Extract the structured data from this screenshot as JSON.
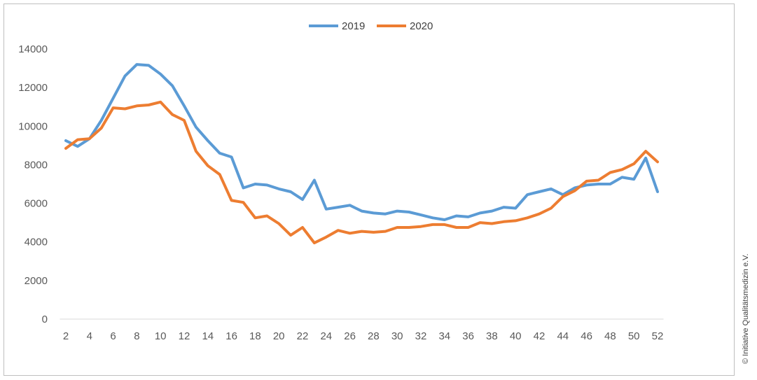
{
  "copyright": "© Initiative Qualitätsmedizin e.V.",
  "chart_data": {
    "type": "line",
    "title": "",
    "xlabel": "",
    "ylabel": "",
    "ylim": [
      0,
      14000
    ],
    "y_ticks": [
      0,
      2000,
      4000,
      6000,
      8000,
      10000,
      12000,
      14000
    ],
    "x_range": [
      2,
      52
    ],
    "x_ticks": [
      2,
      4,
      6,
      8,
      10,
      12,
      14,
      16,
      18,
      20,
      22,
      24,
      26,
      28,
      30,
      32,
      34,
      36,
      38,
      40,
      42,
      44,
      46,
      48,
      50,
      52
    ],
    "grid": false,
    "legend": "top-center",
    "x": [
      2,
      3,
      4,
      5,
      6,
      7,
      8,
      9,
      10,
      11,
      12,
      13,
      14,
      15,
      16,
      17,
      18,
      19,
      20,
      21,
      22,
      23,
      24,
      25,
      26,
      27,
      28,
      29,
      30,
      31,
      32,
      33,
      34,
      35,
      36,
      37,
      38,
      39,
      40,
      41,
      42,
      43,
      44,
      45,
      46,
      47,
      48,
      49,
      50,
      51,
      52
    ],
    "series": [
      {
        "name": "2019",
        "color": "#5b9bd5",
        "values": [
          9250,
          8950,
          9350,
          10300,
          11450,
          12600,
          13200,
          13150,
          12700,
          12100,
          11050,
          9950,
          9250,
          8600,
          8400,
          6800,
          7000,
          6950,
          6750,
          6600,
          6200,
          7200,
          5700,
          5800,
          5900,
          5600,
          5500,
          5450,
          5600,
          5550,
          5400,
          5250,
          5150,
          5350,
          5300,
          5500,
          5600,
          5800,
          5750,
          6450,
          6600,
          6750,
          6450,
          6800,
          6950,
          7000,
          7000,
          7350,
          7250,
          8350,
          6600
        ]
      },
      {
        "name": "2020",
        "color": "#ed7d31",
        "values": [
          8850,
          9300,
          9350,
          9900,
          10950,
          10900,
          11050,
          11100,
          11250,
          10600,
          10300,
          8700,
          7950,
          7500,
          6150,
          6050,
          5250,
          5350,
          4950,
          4350,
          4750,
          3950,
          4250,
          4600,
          4450,
          4550,
          4500,
          4550,
          4750,
          4750,
          4800,
          4900,
          4900,
          4750,
          4750,
          5000,
          4950,
          5050,
          5100,
          5250,
          5450,
          5750,
          6350,
          6650,
          7150,
          7200,
          7600,
          7750,
          8050,
          8700,
          8150
        ]
      }
    ]
  }
}
